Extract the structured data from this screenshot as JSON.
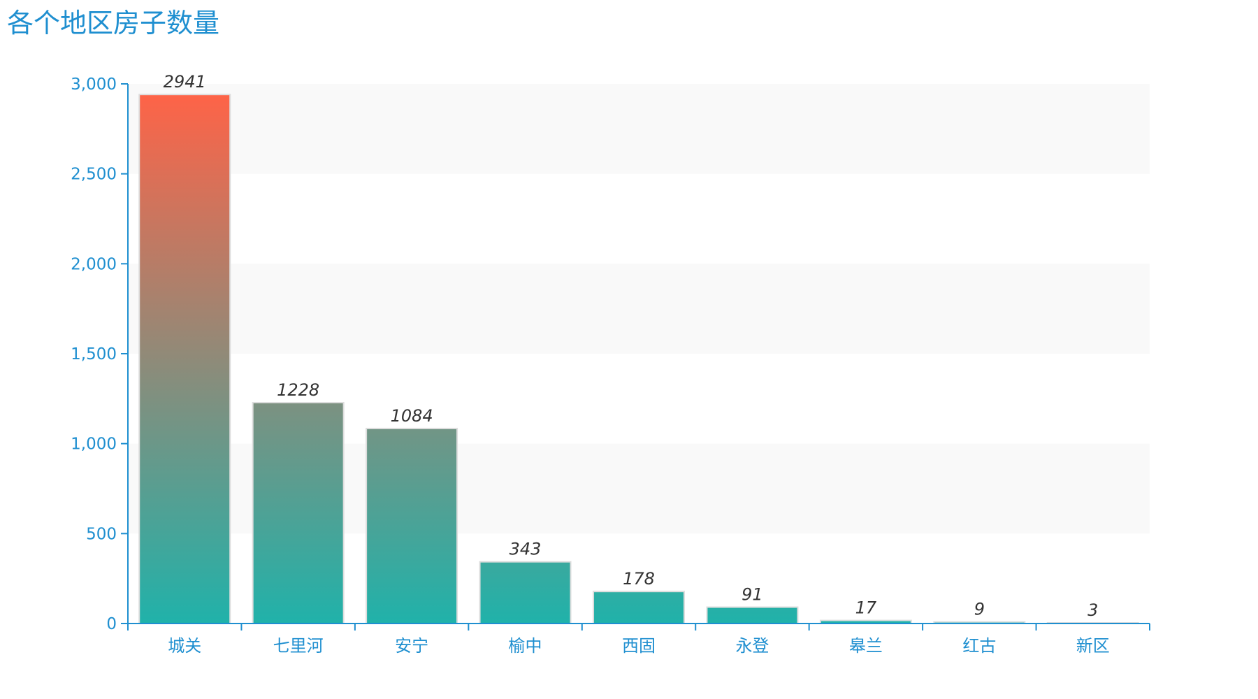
{
  "chart_data": {
    "type": "bar",
    "title": "各个地区房子数量",
    "xlabel": "",
    "ylabel": "",
    "categories": [
      "城关",
      "七里河",
      "安宁",
      "榆中",
      "西固",
      "永登",
      "皋兰",
      "红古",
      "新区"
    ],
    "values": [
      2941,
      1228,
      1084,
      343,
      178,
      91,
      17,
      9,
      3
    ],
    "ylim": [
      0,
      3000
    ],
    "yticks": [
      0,
      500,
      1000,
      1500,
      2000,
      2500,
      3000
    ],
    "ytick_labels": [
      "0",
      "500",
      "1,000",
      "1,500",
      "2,000",
      "2,500",
      "3,000"
    ],
    "grid": "alternating horizontal bands",
    "data_labels": true,
    "colors": {
      "title": "#1f8fd0",
      "axis": "#1f8fd0",
      "bar_top": "#ff6347",
      "bar_bottom": "#20b2aa",
      "bar_border": "#dddddd",
      "band": "#f9f9f9",
      "data_label": "#333333"
    }
  }
}
